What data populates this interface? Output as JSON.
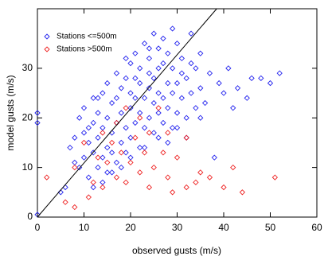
{
  "chart_data": {
    "type": "scatter",
    "xlabel": "observed gusts (m/s)",
    "ylabel": "model gusts (m/s)",
    "xlim": [
      0,
      60
    ],
    "ylim": [
      0,
      42
    ],
    "xticks": [
      0,
      10,
      20,
      30,
      40,
      50,
      60
    ],
    "yticks": [
      0,
      10,
      20,
      30
    ],
    "legend": "upper left",
    "line": {
      "color": "#000000",
      "x": [
        0,
        38.5
      ],
      "values": [
        0,
        42
      ]
    },
    "series": [
      {
        "name": "Stations <=500m",
        "color": "#2222ee",
        "x": [
          0,
          0,
          0,
          5,
          6,
          7,
          8,
          8,
          9,
          9,
          10,
          10,
          10,
          11,
          11,
          12,
          12,
          12,
          13,
          13,
          13,
          14,
          14,
          14,
          15,
          15,
          15,
          15,
          16,
          16,
          16,
          17,
          17,
          17,
          17,
          18,
          18,
          18,
          19,
          19,
          19,
          20,
          20,
          20,
          20,
          21,
          21,
          21,
          22,
          22,
          22,
          22,
          23,
          23,
          23,
          24,
          24,
          24,
          24,
          25,
          25,
          25,
          25,
          26,
          26,
          26,
          26,
          27,
          27,
          27,
          28,
          28,
          28,
          29,
          29,
          29,
          30,
          30,
          30,
          31,
          31,
          31,
          32,
          32,
          33,
          33,
          34,
          34,
          35,
          35,
          36,
          37,
          38,
          39,
          40,
          41,
          42,
          43,
          45,
          46,
          48,
          50,
          52,
          18,
          20,
          23,
          26,
          28,
          30,
          32,
          35,
          14,
          16,
          12,
          21,
          19,
          27,
          29,
          24,
          33,
          11,
          13
        ],
        "values": [
          0.5,
          19,
          21,
          5,
          6,
          14,
          11,
          16,
          10,
          20,
          12,
          17,
          22,
          8,
          15,
          13,
          19,
          24,
          10,
          16,
          21,
          12,
          18,
          25,
          9,
          14,
          20,
          27,
          13,
          17,
          23,
          11,
          19,
          24,
          29,
          15,
          21,
          26,
          13,
          18,
          28,
          16,
          22,
          25,
          31,
          19,
          24,
          33,
          14,
          21,
          27,
          30,
          18,
          24,
          35,
          20,
          26,
          29,
          32,
          17,
          23,
          28,
          37,
          21,
          25,
          30,
          34,
          19,
          24,
          31,
          22,
          27,
          33,
          18,
          25,
          30,
          21,
          27,
          35,
          24,
          29,
          32,
          20,
          28,
          25,
          31,
          22,
          30,
          26,
          33,
          23,
          29,
          12,
          27,
          25,
          30,
          22,
          26,
          24,
          28,
          28,
          27,
          29,
          10,
          12,
          14,
          16,
          15,
          18,
          16,
          20,
          7,
          9,
          6,
          28,
          32,
          36,
          38,
          34,
          37,
          18,
          24
        ]
      },
      {
        "name": "Stations >500m",
        "color": "#ee2222",
        "x": [
          2,
          8,
          10,
          12,
          13,
          14,
          14,
          15,
          16,
          17,
          17,
          18,
          19,
          19,
          20,
          21,
          22,
          22,
          23,
          24,
          24,
          25,
          26,
          27,
          28,
          28,
          29,
          30,
          32,
          32,
          34,
          35,
          37,
          40,
          42,
          44,
          51,
          8,
          11,
          6
        ],
        "values": [
          8,
          10,
          15,
          7,
          12,
          6,
          17,
          11,
          15,
          8,
          19,
          13,
          7,
          22,
          11,
          16,
          9,
          20,
          13,
          6,
          17,
          10,
          22,
          13,
          8,
          17,
          5,
          12,
          6,
          16,
          7,
          9,
          8,
          6,
          10,
          5,
          8,
          2,
          4,
          3
        ]
      }
    ]
  }
}
